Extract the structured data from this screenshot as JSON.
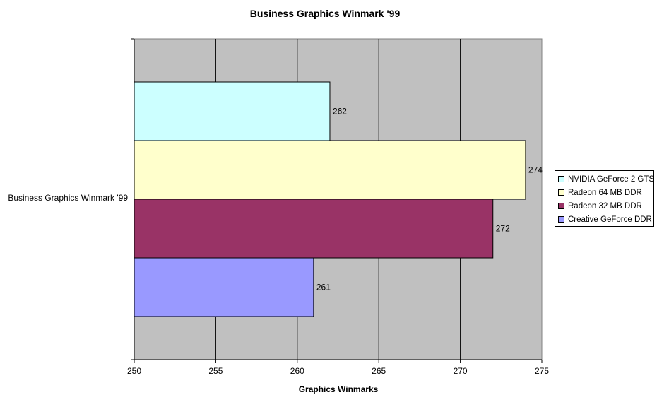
{
  "chart_data": {
    "type": "bar",
    "orientation": "horizontal",
    "title": "Business Graphics Winmark '99",
    "xlabel": "Graphics Winmarks",
    "ylabel": "",
    "category": "Business Graphics Winmark '99",
    "xlim": [
      250,
      275
    ],
    "x_ticks": [
      250,
      255,
      260,
      265,
      270,
      275
    ],
    "grid": true,
    "plot_background": "#c0c0c0",
    "legend_position": "right",
    "series": [
      {
        "name": "NVIDIA GeForce 2 GTS",
        "value": 262,
        "label": "262",
        "color": "#ccffff"
      },
      {
        "name": "Radeon 64 MB DDR",
        "value": 274,
        "label": "274",
        "color": "#ffffcc"
      },
      {
        "name": "Radeon 32 MB DDR",
        "value": 272,
        "label": "272",
        "color": "#993366"
      },
      {
        "name": "Creative GeForce DDR",
        "value": 261,
        "label": "261",
        "color": "#9999ff"
      }
    ]
  }
}
